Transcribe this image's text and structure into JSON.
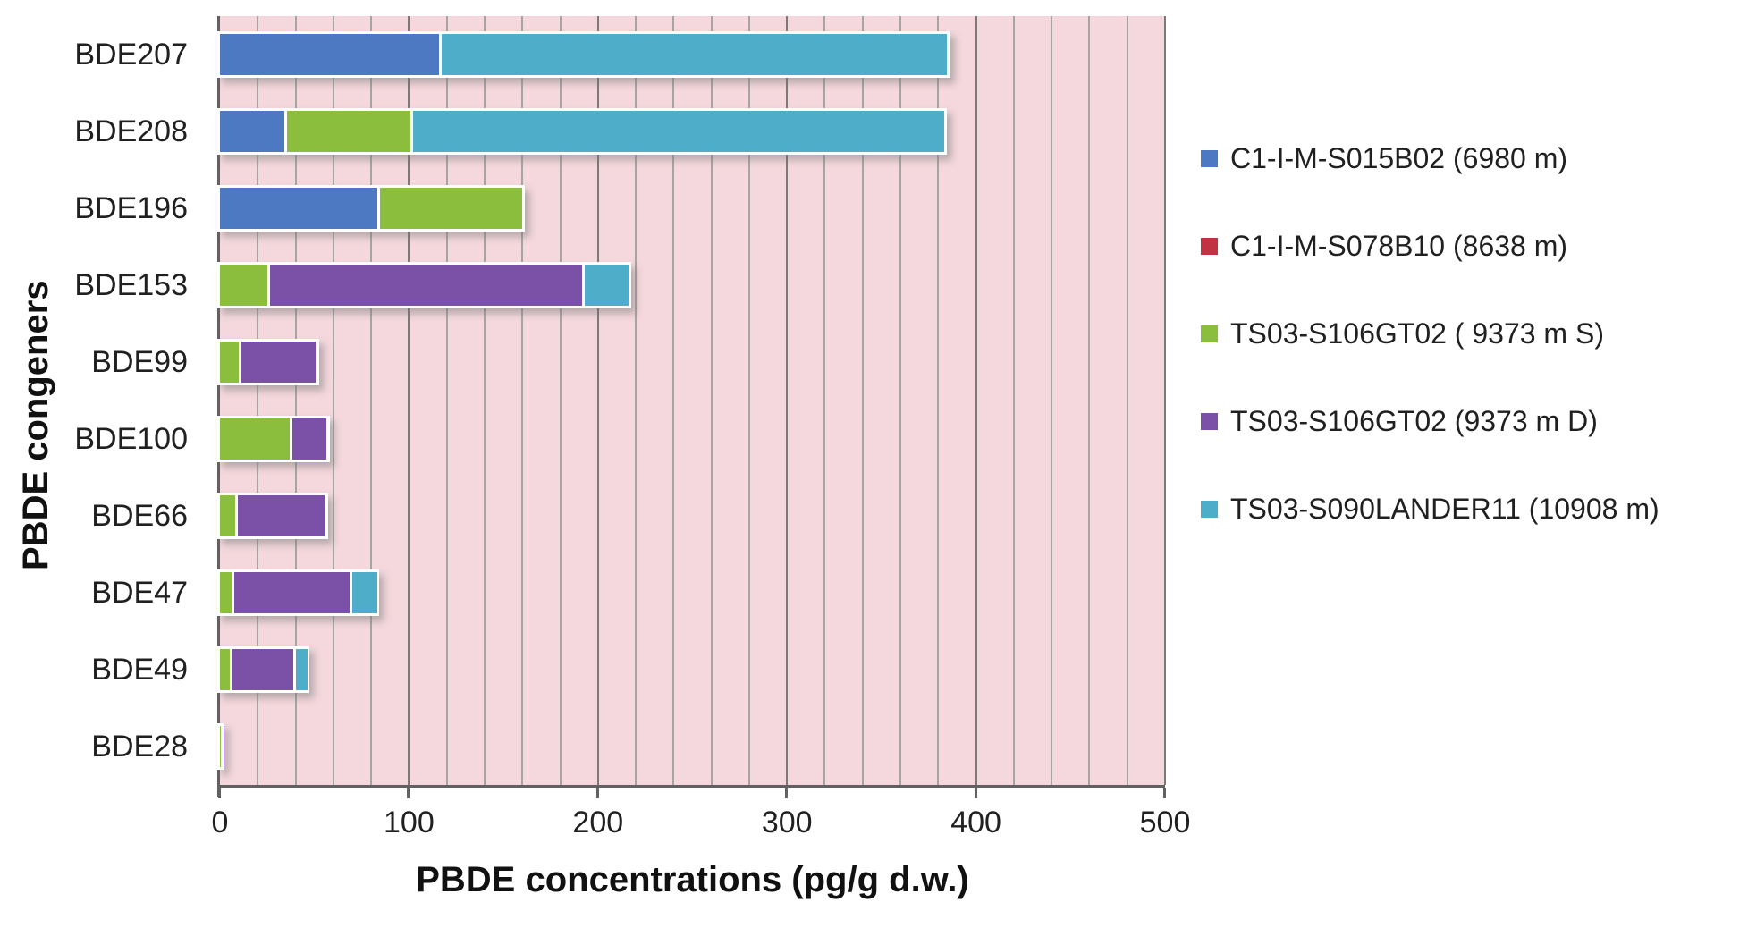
{
  "chart_data": {
    "type": "bar",
    "orientation": "horizontal",
    "stacked": true,
    "title": "",
    "xlabel": "PBDE concentrations (pg/g d.w.)",
    "ylabel": "PBDE congeners",
    "xlim": [
      0,
      500
    ],
    "x_ticks": [
      0,
      100,
      200,
      300,
      400,
      500
    ],
    "minor_grid_step": 20,
    "major_grid_step": 100,
    "grid": true,
    "legend_position": "right",
    "plot_bg_color": "#f4d8dd",
    "categories": [
      "BDE207",
      "BDE208",
      "BDE196",
      "BDE153",
      "BDE99",
      "BDE100",
      "BDE66",
      "BDE47",
      "BDE49",
      "BDE28"
    ],
    "series": [
      {
        "name": "C1-I-M-S015B02 (6980 m)",
        "color": "#4c79c1",
        "values": [
          117,
          35,
          84,
          0,
          0,
          0,
          0,
          0,
          0,
          0
        ]
      },
      {
        "name": "C1-I-M-S078B10 (8638 m)",
        "color": "#c13243",
        "values": [
          0,
          0,
          0,
          0,
          0,
          0,
          0,
          0,
          0,
          0
        ]
      },
      {
        "name": "TS03-S106GT02 ( 9373 m S)",
        "color": "#8cbe3e",
        "values": [
          0,
          66,
          76,
          26,
          11,
          38,
          9,
          7,
          6,
          0.5
        ]
      },
      {
        "name": "TS03-S106GT02 (9373 m D)",
        "color": "#7b51a7",
        "values": [
          0,
          0,
          0,
          166,
          40,
          19,
          47,
          62,
          33,
          0.5
        ]
      },
      {
        "name": "TS03-S090LANDER11 (10908 m)",
        "color": "#4eadc9",
        "values": [
          268,
          282,
          0,
          24,
          0,
          0,
          0,
          14,
          7,
          0
        ]
      }
    ]
  }
}
